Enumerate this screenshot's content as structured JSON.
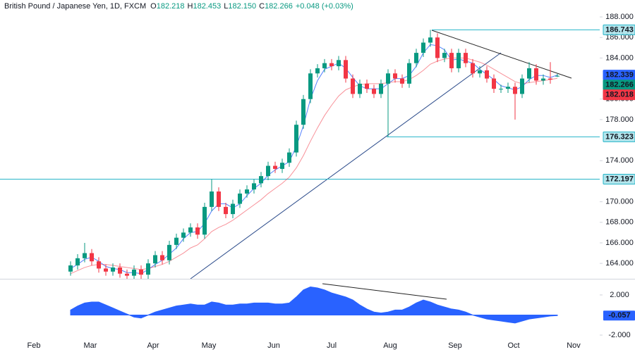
{
  "chart_data": {
    "type": "candlestick",
    "title": "British Pound / Japanese Yen, 1D, FXCM",
    "header": {
      "labels": [
        "O",
        "H",
        "L",
        "C"
      ],
      "value_labels": [
        "182.218",
        "182.453",
        "182.150",
        "182.266"
      ],
      "change": "+0.048 (+0.03%)",
      "color": "#089981"
    },
    "up_color": "#089981",
    "down_color": "#f23645",
    "open": [
      163.2,
      163.8,
      164.5,
      165.0,
      164.2,
      163.5,
      163.2,
      163.6,
      163.0,
      162.8,
      163.4,
      162.9,
      164.0,
      164.8,
      164.3,
      165.8,
      166.5,
      167.0,
      167.5,
      166.8,
      169.5,
      171.0,
      169.5,
      168.8,
      169.8,
      170.8,
      171.2,
      171.8,
      172.5,
      173.5,
      173.2,
      173.8,
      174.8,
      177.5,
      180.0,
      182.5,
      183.0,
      183.5,
      183.2,
      183.8,
      182.0,
      180.5,
      181.5,
      181.0,
      180.5,
      181.5,
      182.5,
      182.0,
      181.5,
      183.5,
      184.5,
      185.5,
      186.0,
      184.0,
      184.5,
      183.0,
      184.5,
      183.5,
      182.5,
      182.8,
      182.0,
      181.0,
      181.0,
      181.2,
      180.5,
      182.0,
      183.0,
      181.8,
      182.0,
      182.218
    ],
    "high": [
      164.2,
      164.9,
      166.0,
      165.4,
      164.6,
      163.9,
      164.0,
      164.0,
      163.4,
      163.8,
      163.8,
      164.4,
      165.2,
      165.2,
      166.2,
      166.9,
      167.4,
      167.9,
      167.9,
      169.9,
      172.197,
      171.4,
      169.9,
      170.2,
      171.2,
      171.6,
      172.2,
      172.9,
      173.9,
      173.9,
      174.2,
      175.2,
      177.9,
      180.4,
      182.9,
      183.4,
      183.9,
      183.9,
      184.2,
      184.2,
      182.4,
      181.9,
      181.9,
      181.4,
      181.9,
      182.9,
      182.9,
      182.4,
      183.9,
      184.9,
      185.9,
      186.743,
      186.4,
      184.9,
      184.9,
      184.9,
      184.9,
      183.9,
      183.2,
      183.2,
      182.4,
      181.4,
      181.6,
      181.6,
      182.4,
      183.6,
      183.4,
      182.4,
      183.6,
      182.453
    ],
    "low": [
      162.8,
      163.4,
      164.1,
      163.8,
      163.1,
      162.8,
      162.8,
      162.6,
      162.4,
      162.4,
      162.5,
      162.5,
      163.6,
      163.9,
      163.9,
      165.4,
      166.1,
      166.6,
      166.4,
      166.4,
      169.1,
      169.1,
      168.4,
      168.4,
      169.4,
      170.4,
      170.8,
      171.4,
      172.1,
      172.8,
      172.8,
      173.4,
      174.4,
      177.1,
      179.6,
      182.1,
      182.6,
      182.8,
      182.8,
      181.6,
      180.1,
      180.1,
      180.6,
      180.1,
      180.1,
      176.323,
      181.6,
      181.1,
      181.1,
      183.1,
      184.1,
      185.1,
      183.6,
      183.6,
      182.6,
      182.6,
      183.1,
      182.1,
      182.1,
      181.6,
      180.6,
      180.6,
      180.6,
      178.0,
      180.1,
      181.6,
      181.4,
      181.4,
      181.5,
      182.15
    ],
    "close": [
      163.8,
      164.5,
      165.0,
      164.2,
      163.5,
      163.2,
      163.6,
      163.0,
      162.8,
      163.4,
      162.9,
      164.0,
      164.8,
      164.3,
      165.8,
      166.5,
      167.0,
      167.5,
      166.8,
      169.5,
      171.0,
      169.5,
      168.8,
      169.8,
      170.8,
      171.2,
      171.8,
      172.5,
      173.5,
      173.2,
      173.8,
      174.8,
      177.5,
      180.0,
      182.5,
      183.0,
      183.5,
      183.2,
      183.8,
      182.0,
      180.5,
      181.5,
      181.0,
      180.5,
      181.5,
      182.5,
      182.0,
      181.5,
      183.5,
      184.5,
      185.5,
      186.0,
      184.0,
      184.5,
      183.0,
      184.5,
      183.5,
      182.5,
      182.8,
      182.0,
      181.0,
      181.0,
      181.2,
      180.5,
      182.0,
      183.0,
      181.8,
      182.0,
      181.9,
      182.266
    ],
    "ma": [
      {
        "color": "#2962ff",
        "values": [
          163.5,
          163.9,
          164.4,
          164.6,
          164.2,
          163.7,
          163.5,
          163.4,
          163.1,
          163.1,
          163.0,
          163.4,
          163.9,
          164.3,
          164.9,
          165.5,
          166.4,
          167.0,
          167.1,
          167.9,
          169.1,
          169.8,
          169.8,
          169.4,
          169.8,
          170.6,
          171.3,
          171.8,
          172.6,
          173.1,
          173.5,
          173.9,
          175.4,
          177.4,
          180.0,
          181.8,
          182.9,
          183.2,
          183.5,
          183.0,
          182.1,
          181.3,
          181.0,
          181.0,
          181.0,
          181.5,
          182.0,
          182.0,
          182.3,
          183.2,
          184.5,
          185.3,
          185.2,
          184.8,
          183.8,
          183.9,
          183.7,
          183.5,
          182.9,
          182.4,
          181.9,
          181.3,
          181.1,
          180.9,
          181.2,
          181.9,
          182.3,
          182.3,
          182.1,
          182.339
        ]
      },
      {
        "color": "#f23645",
        "values": [
          163.0,
          163.3,
          163.6,
          163.8,
          163.9,
          163.9,
          163.8,
          163.7,
          163.6,
          163.5,
          163.4,
          163.5,
          163.7,
          163.9,
          164.2,
          164.6,
          165.0,
          165.5,
          165.8,
          166.4,
          167.1,
          167.5,
          167.8,
          168.2,
          168.7,
          169.2,
          169.7,
          170.2,
          170.8,
          171.3,
          171.8,
          172.4,
          173.3,
          174.5,
          175.9,
          177.2,
          178.4,
          179.4,
          180.3,
          180.9,
          181.2,
          181.4,
          181.5,
          181.5,
          181.5,
          181.6,
          181.7,
          181.7,
          181.9,
          182.3,
          182.8,
          183.4,
          183.7,
          183.9,
          184.0,
          184.0,
          184.0,
          183.8,
          183.6,
          183.3,
          182.9,
          182.5,
          182.1,
          181.7,
          181.5,
          181.6,
          181.7,
          181.8,
          181.9,
          182.018
        ]
      }
    ],
    "levels": [
      {
        "value": 186.743,
        "color": "#26b5c9"
      },
      {
        "value": 176.323,
        "color": "#26b5c9"
      },
      {
        "value": 172.197,
        "color": "#26b5c9"
      }
    ],
    "ylim": [
      162.5,
      189.1
    ],
    "yticks": [
      {
        "value": 188,
        "label": "188.000"
      },
      {
        "value": 186,
        "label": "186.000"
      },
      {
        "value": 184,
        "label": "184.000"
      },
      {
        "value": 180,
        "label": "180.000"
      },
      {
        "value": 178,
        "label": "178.000"
      },
      {
        "value": 174,
        "label": "174.000"
      },
      {
        "value": 170,
        "label": "170.000"
      },
      {
        "value": 168,
        "label": "168.000"
      },
      {
        "value": 166,
        "label": "166.000"
      },
      {
        "value": 164,
        "label": "164.000"
      }
    ],
    "months": [
      "Feb",
      "Mar",
      "Apr",
      "May",
      "Jun",
      "Jul",
      "Aug",
      "Sep",
      "Oct",
      "Nov"
    ],
    "oscillator": {
      "color": "#2962ff",
      "values": [
        0.5,
        0.9,
        1.2,
        1.3,
        1.3,
        1.0,
        0.7,
        0.4,
        0.1,
        -0.2,
        -0.3,
        0,
        0.3,
        0.5,
        0.7,
        0.9,
        1.0,
        1.1,
        1.0,
        1.0,
        1.3,
        1.2,
        1.0,
        1.0,
        1.1,
        1.1,
        1.2,
        1.2,
        1.2,
        1.1,
        1.1,
        1.2,
        1.8,
        2.5,
        2.8,
        2.7,
        2.5,
        2.2,
        2.0,
        1.8,
        1.5,
        1.0,
        0.6,
        0.3,
        0.2,
        0.3,
        0.5,
        0.5,
        0.8,
        1.2,
        1.5,
        1.3,
        1.0,
        0.8,
        0.6,
        0.5,
        0.3,
        0,
        -0.2,
        -0.4,
        -0.5,
        -0.6,
        -0.7,
        -0.8,
        -0.6,
        -0.4,
        -0.3,
        -0.2,
        -0.1,
        -0.057
      ],
      "ylim": [
        -2.14,
        3.47
      ],
      "yticks": [
        {
          "value": 2,
          "label": "2.000"
        },
        {
          "value": -2,
          "label": "-2.000"
        }
      ]
    },
    "grid": false
  }
}
